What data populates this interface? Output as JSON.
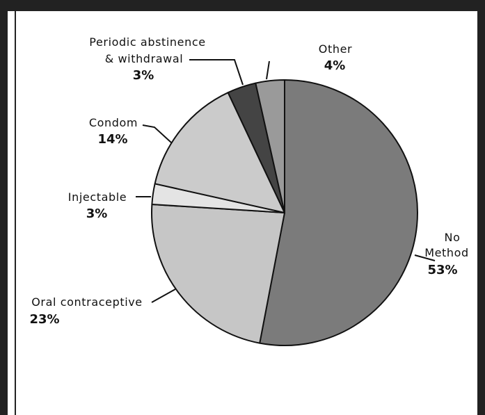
{
  "chart_data": {
    "type": "pie",
    "slices": [
      {
        "label_lines": [
          "No",
          "Method"
        ],
        "percent_text": "53%",
        "value": 53,
        "color": "#7b7b7b"
      },
      {
        "label_lines": [
          "Oral contraceptive"
        ],
        "percent_text": "23%",
        "value": 23,
        "color": "#c6c6c6"
      },
      {
        "label_lines": [
          "Injectable"
        ],
        "percent_text": "3%",
        "value": 2.5,
        "color": "#e4e4e4"
      },
      {
        "label_lines": [
          "Condom"
        ],
        "percent_text": "14%",
        "value": 14.5,
        "color": "#cbcbcb"
      },
      {
        "label_lines": [
          "Periodic abstinence",
          "& withdrawal"
        ],
        "percent_text": "3%",
        "value": 3.5,
        "color": "#444444"
      },
      {
        "label_lines": [
          "Other"
        ],
        "percent_text": "4%",
        "value": 3.5,
        "color": "#9a9a9a"
      }
    ]
  }
}
